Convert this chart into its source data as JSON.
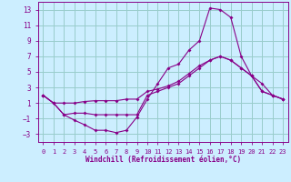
{
  "bg_color": "#cceeff",
  "line_color": "#880088",
  "grid_color": "#99cccc",
  "xlim": [
    -0.5,
    23.5
  ],
  "ylim": [
    -4,
    14
  ],
  "xticks": [
    0,
    1,
    2,
    3,
    4,
    5,
    6,
    7,
    8,
    9,
    10,
    11,
    12,
    13,
    14,
    15,
    16,
    17,
    18,
    19,
    20,
    21,
    22,
    23
  ],
  "yticks": [
    -3,
    -1,
    1,
    3,
    5,
    7,
    9,
    11,
    13
  ],
  "xlabel": "Windchill (Refroidissement éolien,°C)",
  "line1_x": [
    0,
    1,
    2,
    3,
    4,
    5,
    6,
    7,
    8,
    9,
    10,
    11,
    12,
    13,
    14,
    15,
    16,
    17,
    18,
    19,
    20,
    21,
    22,
    23
  ],
  "line1_y": [
    2.0,
    1.0,
    -0.5,
    -1.2,
    -1.8,
    -2.5,
    -2.5,
    -2.8,
    -2.5,
    -0.8,
    1.5,
    3.5,
    5.5,
    6.0,
    7.8,
    9.0,
    13.2,
    13.0,
    12.0,
    7.0,
    4.5,
    3.5,
    2.0,
    1.5
  ],
  "line2_x": [
    0,
    1,
    2,
    3,
    4,
    5,
    6,
    7,
    8,
    9,
    10,
    11,
    12,
    13,
    14,
    15,
    16,
    17,
    18,
    19,
    20,
    21,
    22,
    23
  ],
  "line2_y": [
    2.0,
    1.0,
    -0.5,
    -0.3,
    -0.3,
    -0.5,
    -0.5,
    -0.5,
    -0.5,
    -0.5,
    2.0,
    2.5,
    3.0,
    3.5,
    4.5,
    5.5,
    6.5,
    7.0,
    6.5,
    5.5,
    4.5,
    2.5,
    2.0,
    1.5
  ],
  "line3_x": [
    0,
    1,
    2,
    3,
    4,
    5,
    6,
    7,
    8,
    9,
    10,
    11,
    12,
    13,
    14,
    15,
    16,
    17,
    18,
    19,
    20,
    21,
    22,
    23
  ],
  "line3_y": [
    2.0,
    1.0,
    1.0,
    1.0,
    1.2,
    1.3,
    1.3,
    1.3,
    1.5,
    1.5,
    2.5,
    2.8,
    3.2,
    3.8,
    4.8,
    5.8,
    6.5,
    7.0,
    6.5,
    5.5,
    4.5,
    2.5,
    2.0,
    1.5
  ]
}
